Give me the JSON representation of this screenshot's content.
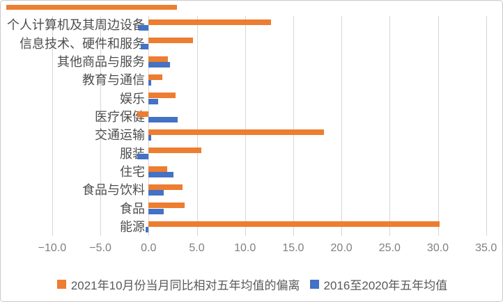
{
  "colors": {
    "series_deviation": "#ED7D31",
    "series_average": "#4472C4",
    "gridline": "#d6d6d6",
    "tick_text": "#7f7f7f",
    "category_text": "#4d4d4d",
    "frame_border": "#c9c9c9"
  },
  "chart_data": {
    "type": "bar",
    "orientation": "horizontal",
    "title": "",
    "xlabel": "",
    "ylabel": "",
    "xlim": [
      -12.3,
      36.9
    ],
    "grid": "vertical",
    "legend_position": "bottom-center",
    "x_ticks": [
      {
        "label": "−10.0",
        "value": -10
      },
      {
        "label": "−5.0",
        "value": -5
      },
      {
        "label": "0.0",
        "value": 0
      },
      {
        "label": "5.0",
        "value": 5
      },
      {
        "label": "10.0",
        "value": 10
      },
      {
        "label": "15.0",
        "value": 15
      },
      {
        "label": "20.0",
        "value": 20
      },
      {
        "label": "25.0",
        "value": 25
      },
      {
        "label": "30.0",
        "value": 30
      },
      {
        "label": "35.0",
        "value": 35
      }
    ],
    "categories": [
      "个人计算机及其周边设备",
      "信息技术、硬件和服务",
      "其他商品与服务",
      "教育与通信",
      "娱乐",
      "医疗保健",
      "交通运输",
      "服装",
      "住宅",
      "食品与饮料",
      "食品",
      "能源"
    ],
    "series": [
      {
        "name": "2021年10月份当月同比相对五年均值的偏离",
        "color": "#ED7D31",
        "values": [
          12.7,
          4.6,
          2.0,
          1.4,
          2.8,
          -1.2,
          18.2,
          5.5,
          1.9,
          3.5,
          3.7,
          30.2
        ]
      },
      {
        "name": "2016至2020年五年均值",
        "color": "#4472C4",
        "values": [
          -1.0,
          -0.8,
          2.2,
          0.3,
          1.0,
          3.0,
          0.3,
          -1.2,
          2.6,
          1.6,
          1.6,
          -0.3
        ]
      }
    ]
  }
}
